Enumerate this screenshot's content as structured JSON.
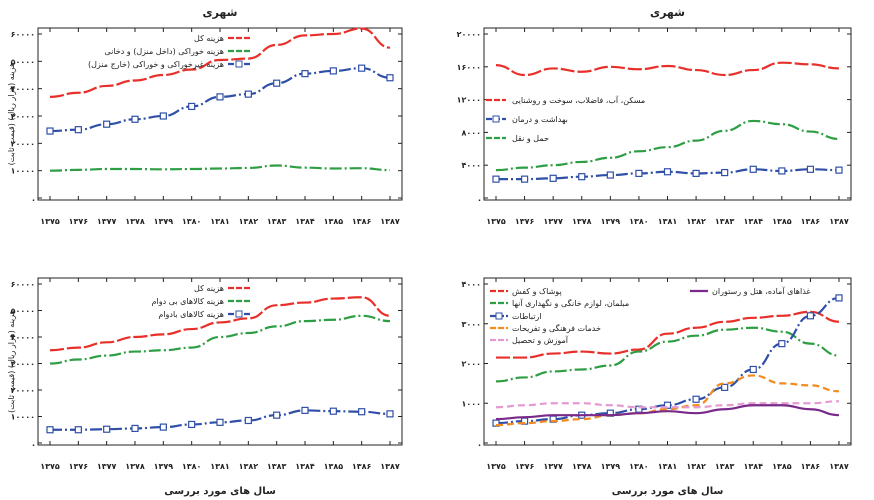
{
  "chart_data": [
    {
      "type": "line",
      "title": "شهری",
      "ylabel": "هزینه (هزار ریال) (قیمت ثابت)",
      "xlabel": "",
      "categories": [
        "۱۳۷۵",
        "۱۳۷۶",
        "۱۳۷۷",
        "۱۳۷۸",
        "۱۳۷۹",
        "۱۳۸۰",
        "۱۳۸۱",
        "۱۳۸۲",
        "۱۳۸۳",
        "۱۳۸۴",
        "۱۳۸۵",
        "۱۳۸۶",
        "۱۳۸۷"
      ],
      "x": [
        1375,
        1376,
        1377,
        1378,
        1379,
        1380,
        1381,
        1382,
        1383,
        1384,
        1385,
        1386,
        1387
      ],
      "ylim": [
        0,
        60000
      ],
      "yticks": [
        0,
        10000,
        20000,
        30000,
        40000,
        50000,
        60000
      ],
      "ytick_labels": [
        ".",
        "۱۰۰۰۰",
        "۲۰۰۰۰",
        "۳۰۰۰۰",
        "۴۰۰۰۰",
        "۵۰۰۰۰",
        "۶۰۰۰۰"
      ],
      "legend": "top-right",
      "grid": false,
      "series": [
        {
          "name": "هزینه کل",
          "color": "#e8302a",
          "dash": "long",
          "values": [
            37000,
            38500,
            41000,
            43000,
            45000,
            47000,
            50500,
            51000,
            56000,
            59500,
            60000,
            62000,
            55000
          ]
        },
        {
          "name": "هزینه خوراکی (داخل منزل) و دخانی",
          "color": "#2e9e44",
          "dash": "dashdot",
          "values": [
            10000,
            10300,
            10600,
            10600,
            10500,
            10600,
            10800,
            11000,
            11900,
            11100,
            10800,
            10900,
            10200
          ]
        },
        {
          "name": "هزینه غیرخوراکی و خوراکی (خارج منزل)",
          "color": "#2f4fa8",
          "dash": "dashdot",
          "marker": true,
          "values": [
            24500,
            25000,
            27000,
            28800,
            30000,
            33500,
            37000,
            38000,
            42000,
            45500,
            46500,
            47500,
            44000
          ]
        }
      ]
    },
    {
      "type": "line",
      "title": "شهری",
      "ylabel": "",
      "xlabel": "",
      "categories": [
        "۱۳۷۵",
        "۱۳۷۶",
        "۱۳۷۷",
        "۱۳۷۸",
        "۱۳۷۹",
        "۱۳۸۰",
        "۱۳۸۱",
        "۱۳۸۲",
        "۱۳۸۳",
        "۱۳۸۴",
        "۱۳۸۵",
        "۱۳۸۶",
        "۱۳۸۷"
      ],
      "x": [
        1375,
        1376,
        1377,
        1378,
        1379,
        1380,
        1381,
        1382,
        1383,
        1384,
        1385,
        1386,
        1387
      ],
      "ylim": [
        0,
        20000
      ],
      "yticks": [
        0,
        4000,
        8000,
        12000,
        16000,
        20000
      ],
      "ytick_labels": [
        ".",
        "۴۰۰۰",
        "۸۰۰۰",
        "۱۲۰۰۰",
        "۱۶۰۰۰",
        "۲۰۰۰۰"
      ],
      "legend": "center-right",
      "grid": false,
      "series": [
        {
          "name": "مسکن، آب، فاضلاب، سوخت و روشنایی",
          "color": "#e8302a",
          "dash": "long",
          "values": [
            16200,
            15000,
            15800,
            15400,
            16000,
            15700,
            16100,
            15600,
            15000,
            15600,
            16500,
            16300,
            15800
          ]
        },
        {
          "name": "بهداشت و درمان",
          "color": "#2f4fa8",
          "dash": "dashdot",
          "marker": true,
          "values": [
            2300,
            2300,
            2400,
            2600,
            2800,
            3000,
            3200,
            3000,
            3100,
            3500,
            3300,
            3500,
            3400
          ]
        },
        {
          "name": "حمل و نقل",
          "color": "#2e9e44",
          "dash": "dashdot",
          "values": [
            3400,
            3700,
            4000,
            4400,
            4900,
            5700,
            6200,
            7000,
            8200,
            9400,
            9000,
            8100,
            7200
          ]
        }
      ]
    },
    {
      "type": "line",
      "title": "",
      "ylabel": "هزینه (هزار ریال) (قیمت ثابت)",
      "xlabel": "سال های مورد بررسی",
      "categories": [
        "۱۳۷۵",
        "۱۳۷۶",
        "۱۳۷۷",
        "۱۳۷۸",
        "۱۳۷۹",
        "۱۳۸۰",
        "۱۳۸۱",
        "۱۳۸۲",
        "۱۳۸۳",
        "۱۳۸۴",
        "۱۳۸۵",
        "۱۳۸۶",
        "۱۳۸۷"
      ],
      "x": [
        1375,
        1376,
        1377,
        1378,
        1379,
        1380,
        1381,
        1382,
        1383,
        1384,
        1385,
        1386,
        1387
      ],
      "ylim": [
        0,
        60000
      ],
      "yticks": [
        0,
        10000,
        20000,
        30000,
        40000,
        50000,
        60000
      ],
      "ytick_labels": [
        ".",
        "۱۰۰۰۰",
        "۲۰۰۰۰",
        "۳۰۰۰۰",
        "۴۰۰۰۰",
        "۵۰۰۰۰",
        "۶۰۰۰۰"
      ],
      "legend": "top-right",
      "grid": false,
      "series": [
        {
          "name": "هزینه کل",
          "color": "#e8302a",
          "dash": "long",
          "values": [
            35000,
            36000,
            38000,
            40000,
            41000,
            43000,
            45500,
            47000,
            52000,
            53000,
            54500,
            55000,
            48000
          ]
        },
        {
          "name": "هزینه کالاهای بی دوام",
          "color": "#2e9e44",
          "dash": "dashdot",
          "values": [
            30000,
            31500,
            33000,
            34500,
            35000,
            36000,
            40000,
            41500,
            44000,
            46000,
            46500,
            48000,
            46000
          ]
        },
        {
          "name": "هزینه کالاهای بادوام",
          "color": "#2f4fa8",
          "dash": "dashdot",
          "marker": true,
          "values": [
            5000,
            5000,
            5200,
            5500,
            6000,
            7000,
            7800,
            8500,
            10500,
            12300,
            12000,
            11800,
            11000
          ]
        }
      ]
    },
    {
      "type": "line",
      "title": "",
      "ylabel": "",
      "xlabel": "سال های مورد بررسی",
      "categories": [
        "۱۳۷۵",
        "۱۳۷۶",
        "۱۳۷۷",
        "۱۳۷۸",
        "۱۳۷۹",
        "۱۳۸۰",
        "۱۳۸۱",
        "۱۳۸۲",
        "۱۳۸۳",
        "۱۳۸۴",
        "۱۳۸۵",
        "۱۳۸۶",
        "۱۳۸۷"
      ],
      "x": [
        1375,
        1376,
        1377,
        1378,
        1379,
        1380,
        1381,
        1382,
        1383,
        1384,
        1385,
        1386,
        1387
      ],
      "ylim": [
        0,
        4000
      ],
      "yticks": [
        0,
        1000,
        2000,
        3000,
        4000
      ],
      "ytick_labels": [
        ".",
        "۱۰۰۰",
        "۲۰۰۰",
        "۳۰۰۰",
        "۴۰۰۰"
      ],
      "legend": "top",
      "grid": false,
      "series": [
        {
          "name": "پوشاک و کفش",
          "color": "#e8302a",
          "dash": "long",
          "values": [
            2150,
            2150,
            2250,
            2300,
            2250,
            2350,
            2750,
            2900,
            3050,
            3150,
            3200,
            3300,
            3050
          ]
        },
        {
          "name": "مبلمان، لوازم خانگی و نگهداری آنها",
          "color": "#2e9e44",
          "dash": "dashdot",
          "values": [
            1550,
            1650,
            1800,
            1850,
            1950,
            2300,
            2550,
            2700,
            2850,
            2900,
            2800,
            2500,
            2200
          ]
        },
        {
          "name": "ارتباطات",
          "color": "#2f4fa8",
          "dash": "dashdot",
          "marker": true,
          "values": [
            500,
            550,
            600,
            700,
            750,
            850,
            950,
            1100,
            1400,
            1850,
            2500,
            3200,
            3650
          ]
        },
        {
          "name": "خدمات فرهنگی و تفریحات",
          "color": "#f28a1c",
          "dash": "dashed",
          "values": [
            450,
            500,
            550,
            600,
            700,
            750,
            850,
            950,
            1500,
            1700,
            1500,
            1450,
            1300
          ]
        },
        {
          "name": "آموزش و تحصیل",
          "color": "#e59ad2",
          "dash": "dashed",
          "values": [
            900,
            950,
            1000,
            1000,
            950,
            900,
            900,
            900,
            950,
            1000,
            1000,
            1000,
            1050
          ]
        },
        {
          "name": "غذاهای آماده، هتل و رستوران",
          "color": "#7a2a8a",
          "dash": "solid",
          "values": [
            600,
            650,
            700,
            700,
            700,
            750,
            800,
            750,
            850,
            950,
            950,
            850,
            700
          ]
        }
      ]
    }
  ]
}
